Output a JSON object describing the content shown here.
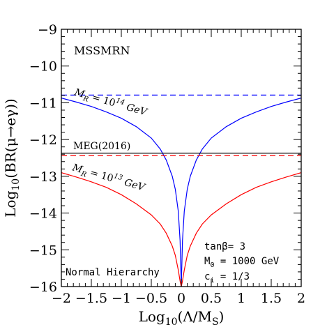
{
  "chart_data": {
    "type": "line",
    "title": "",
    "xlabel": "Log₁₀(Λ/Mₛ)",
    "xlabel_parts": {
      "prefix": "Log",
      "sub": "10",
      "body": "(Λ/M",
      "body_sub": "S",
      "suffix": ")"
    },
    "ylabel": "Log₁₀(BR(μ→eγ))",
    "ylabel_parts": {
      "prefix": "Log",
      "sub": "10",
      "body": "(BR(μ→eγ))"
    },
    "xlim": [
      -2,
      2
    ],
    "ylim": [
      -16,
      -9
    ],
    "x_ticks": [
      -2,
      -1.5,
      -1,
      -0.5,
      0,
      0.5,
      1,
      1.5,
      2
    ],
    "x_tick_labels": [
      "−2",
      "−1.5",
      "−1",
      "−0.5",
      "0",
      "0.5",
      "1",
      "1.5",
      "2"
    ],
    "y_ticks": [
      -16,
      -15,
      -14,
      -13,
      -12,
      -11,
      -10,
      -9
    ],
    "y_tick_labels": [
      "−16",
      "−15",
      "−14",
      "−13",
      "−12",
      "−11",
      "−10",
      "−9"
    ],
    "grid": false,
    "series": [
      {
        "name": "M_R = 10^14 GeV",
        "color": "#0000ff",
        "style": "solid",
        "x": [
          -2,
          -1.75,
          -1.5,
          -1.25,
          -1,
          -0.75,
          -0.5,
          -0.35,
          -0.25,
          -0.15,
          -0.1,
          -0.05,
          -0.02,
          0,
          0.02,
          0.05,
          0.1,
          0.15,
          0.25,
          0.35,
          0.5,
          0.75,
          1,
          1.25,
          1.5,
          1.75,
          2
        ],
        "y": [
          -10.87,
          -10.98,
          -11.1,
          -11.25,
          -11.42,
          -11.65,
          -11.96,
          -12.26,
          -12.56,
          -13.0,
          -13.35,
          -13.95,
          -14.75,
          -16,
          -14.75,
          -13.95,
          -13.35,
          -13.0,
          -12.56,
          -12.26,
          -11.96,
          -11.65,
          -11.42,
          -11.25,
          -11.1,
          -10.98,
          -10.87
        ]
      },
      {
        "name": "M_R = 10^14 GeV (limit)",
        "color": "#0000ff",
        "style": "dashed",
        "x": [
          -2,
          2
        ],
        "y": [
          -10.79,
          -10.79
        ]
      },
      {
        "name": "M_R = 10^13 GeV",
        "color": "#ff0000",
        "style": "solid",
        "x": [
          -2,
          -1.75,
          -1.5,
          -1.25,
          -1,
          -0.75,
          -0.5,
          -0.35,
          -0.25,
          -0.15,
          -0.1,
          -0.05,
          -0.02,
          0,
          0.02,
          0.05,
          0.1,
          0.15,
          0.25,
          0.35,
          0.5,
          0.75,
          1,
          1.25,
          1.5,
          1.75,
          2
        ],
        "y": [
          -12.9,
          -13.02,
          -13.15,
          -13.3,
          -13.5,
          -13.75,
          -14.05,
          -14.3,
          -14.55,
          -14.9,
          -15.15,
          -15.55,
          -15.85,
          -16,
          -15.85,
          -15.55,
          -15.15,
          -14.9,
          -14.55,
          -14.3,
          -14.05,
          -13.75,
          -13.5,
          -13.3,
          -13.15,
          -13.02,
          -12.9
        ]
      },
      {
        "name": "M_R = 10^13 GeV (limit)",
        "color": "#ff0000",
        "style": "dashed",
        "x": [
          -2,
          2
        ],
        "y": [
          -12.44,
          -12.44
        ]
      },
      {
        "name": "MEG(2016)",
        "color": "#000000",
        "style": "solid",
        "x": [
          -2,
          2
        ],
        "y": [
          -12.37,
          -12.37
        ]
      }
    ],
    "annotations": {
      "model": "MSSMRN",
      "meg": "MEG(2016)",
      "mr14": {
        "m": "M",
        "sub": "R",
        "eq": " = 10",
        "exp": "14",
        "unit": " GeV"
      },
      "mr13": {
        "m": "M",
        "sub": "R",
        "eq": " = 10",
        "exp": "13",
        "unit": " GeV"
      },
      "params": {
        "tanb": "tanβ= 3",
        "m0": {
          "m": "M",
          "sub": "0",
          "rest": " = 1000 GeV"
        },
        "ci": {
          "m": "c",
          "sub": "i",
          "rest": " = 1/3"
        }
      },
      "hierarchy": "Normal Hierarchy"
    }
  }
}
